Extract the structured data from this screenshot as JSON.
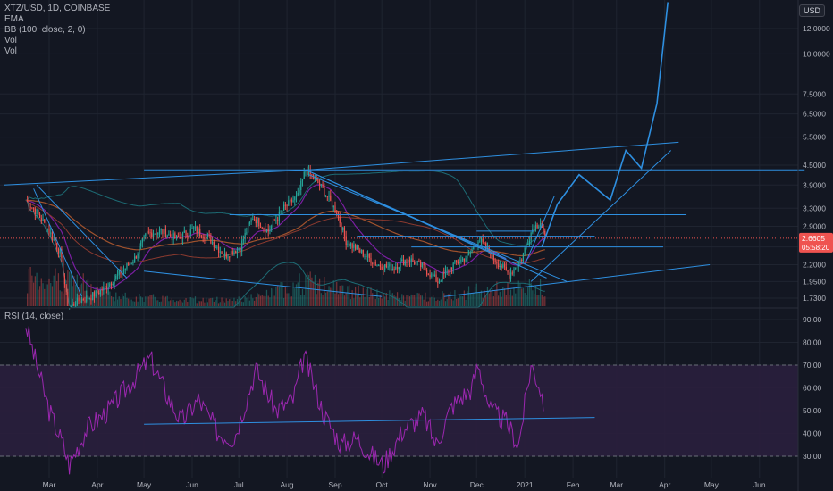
{
  "header": {
    "symbol_line": "XTZ/USD, 1D, COINBASE",
    "indicator_ema": "EMA",
    "indicator_bb": "BB (100, close, 2, 0)",
    "indicator_vol1": "Vol",
    "indicator_vol2": "Vol",
    "currency_badge": "USD"
  },
  "rsi_panel": {
    "title": "RSI (14, close)"
  },
  "colors": {
    "background": "#131722",
    "grid": "#1f2430",
    "up": "#26a69a",
    "down": "#ef5350",
    "drawing": "#2e8fe0",
    "rsi_line": "#9c27b0",
    "rsi_band": "#2a1f3d",
    "bb_line": "#1d6b74",
    "ema_purple": "#7b1fa2",
    "ema_orange": "#a0522d"
  },
  "chart_data": [
    {
      "type": "candlestick",
      "series": [
        {
          "name": "XTZ/USD"
        },
        {
          "name": "EMA"
        },
        {
          "name": "BB (100, close, 2, 0)"
        },
        {
          "name": "Vol"
        }
      ],
      "x_ticks": [
        "Mar",
        "Apr",
        "May",
        "Jun",
        "Jul",
        "Aug",
        "Sep",
        "Oct",
        "Nov",
        "Dec",
        "2021",
        "Feb",
        "Mar",
        "Apr",
        "May",
        "Jun"
      ],
      "y_scale": "log",
      "y_ticks": [
        1.73,
        1.95,
        2.2,
        2.5,
        2.9,
        3.3,
        3.9,
        4.5,
        5.5,
        6.5,
        7.5,
        10.0,
        12.0
      ],
      "y_tick_labels": [
        "1.7300",
        "1.9500",
        "2.2000",
        "2.5000",
        "2.9000",
        "3.3000",
        "3.9000",
        "4.5000",
        "5.5000",
        "6.5000",
        "7.5000",
        "10.0000",
        "12.0000"
      ],
      "top_label": "1",
      "last_price": "2.6605",
      "countdown": "05:58:20",
      "price_path": [
        [
          "2020-02-15",
          3.5
        ],
        [
          "2020-02-22",
          3.2
        ],
        [
          "2020-03-01",
          2.8
        ],
        [
          "2020-03-08",
          2.4
        ],
        [
          "2020-03-13",
          1.6
        ],
        [
          "2020-03-20",
          1.7
        ],
        [
          "2020-03-28",
          1.75
        ],
        [
          "2020-04-05",
          1.85
        ],
        [
          "2020-04-15",
          2.05
        ],
        [
          "2020-04-25",
          2.3
        ],
        [
          "2020-05-03",
          2.75
        ],
        [
          "2020-05-12",
          2.8
        ],
        [
          "2020-05-22",
          2.65
        ],
        [
          "2020-06-02",
          2.85
        ],
        [
          "2020-06-12",
          2.65
        ],
        [
          "2020-06-22",
          2.35
        ],
        [
          "2020-07-02",
          2.5
        ],
        [
          "2020-07-10",
          3.1
        ],
        [
          "2020-07-20",
          2.8
        ],
        [
          "2020-07-30",
          3.3
        ],
        [
          "2020-08-08",
          3.6
        ],
        [
          "2020-08-13",
          4.35
        ],
        [
          "2020-08-22",
          3.9
        ],
        [
          "2020-09-02",
          3.2
        ],
        [
          "2020-09-08",
          2.6
        ],
        [
          "2020-09-18",
          2.4
        ],
        [
          "2020-09-28",
          2.2
        ],
        [
          "2020-10-08",
          2.15
        ],
        [
          "2020-10-18",
          2.3
        ],
        [
          "2020-10-28",
          2.15
        ],
        [
          "2020-11-06",
          1.95
        ],
        [
          "2020-11-16",
          2.2
        ],
        [
          "2020-11-26",
          2.35
        ],
        [
          "2020-12-02",
          2.65
        ],
        [
          "2020-12-12",
          2.3
        ],
        [
          "2020-12-22",
          2.05
        ],
        [
          "2020-12-30",
          2.3
        ],
        [
          "2021-01-06",
          2.85
        ],
        [
          "2021-01-11",
          3.0
        ],
        [
          "2021-01-14",
          2.66
        ]
      ],
      "volume_profile": [
        [
          "2020-03-13",
          0.9
        ],
        [
          "2020-04-15",
          0.3
        ],
        [
          "2020-05-15",
          0.25
        ],
        [
          "2020-06-15",
          0.2
        ],
        [
          "2020-07-15",
          0.3
        ],
        [
          "2020-08-13",
          0.8
        ],
        [
          "2020-09-08",
          0.5
        ],
        [
          "2020-10-15",
          0.3
        ],
        [
          "2020-11-15",
          0.35
        ],
        [
          "2020-12-02",
          0.5
        ],
        [
          "2021-01-06",
          0.6
        ]
      ]
    },
    {
      "type": "line",
      "series": [
        {
          "name": "RSI (14, close)"
        }
      ],
      "y_ticks": [
        30,
        40,
        50,
        60,
        70,
        80,
        90
      ],
      "y_tick_labels": [
        "30.00",
        "40.00",
        "50.00",
        "60.00",
        "70.00",
        "80.00",
        "90.00"
      ],
      "band": [
        30,
        70
      ],
      "rsi_path": [
        [
          "2020-02-15",
          88
        ],
        [
          "2020-02-20",
          75
        ],
        [
          "2020-03-01",
          50
        ],
        [
          "2020-03-10",
          35
        ],
        [
          "2020-03-14",
          26
        ],
        [
          "2020-03-25",
          42
        ],
        [
          "2020-04-08",
          50
        ],
        [
          "2020-04-20",
          60
        ],
        [
          "2020-05-05",
          73
        ],
        [
          "2020-05-15",
          58
        ],
        [
          "2020-05-25",
          45
        ],
        [
          "2020-06-05",
          55
        ],
        [
          "2020-06-18",
          40
        ],
        [
          "2020-06-28",
          38
        ],
        [
          "2020-07-12",
          68
        ],
        [
          "2020-07-25",
          50
        ],
        [
          "2020-08-05",
          55
        ],
        [
          "2020-08-12",
          74
        ],
        [
          "2020-08-25",
          48
        ],
        [
          "2020-09-05",
          35
        ],
        [
          "2020-09-15",
          38
        ],
        [
          "2020-09-25",
          30
        ],
        [
          "2020-10-02",
          26
        ],
        [
          "2020-10-15",
          42
        ],
        [
          "2020-10-28",
          48
        ],
        [
          "2020-11-05",
          35
        ],
        [
          "2020-11-15",
          52
        ],
        [
          "2020-11-28",
          60
        ],
        [
          "2020-12-02",
          70
        ],
        [
          "2020-12-10",
          50
        ],
        [
          "2020-12-20",
          45
        ],
        [
          "2020-12-28",
          35
        ],
        [
          "2021-01-05",
          70
        ],
        [
          "2021-01-10",
          62
        ],
        [
          "2021-01-13",
          54
        ]
      ],
      "trendline": [
        [
          "2020-05-01",
          44
        ],
        [
          "2021-02-15",
          47
        ]
      ]
    }
  ]
}
